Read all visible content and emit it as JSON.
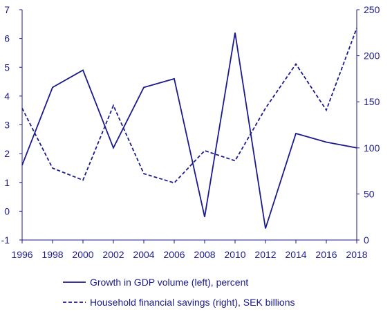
{
  "colors": {
    "series": "#1a1a8c",
    "axis": "#1a1a8c",
    "text": "#1a1a8c"
  },
  "chart_data": {
    "type": "line",
    "title": "",
    "xlabel": "",
    "x_ticks": [
      "1996",
      "1998",
      "2000",
      "2002",
      "2004",
      "2006",
      "2008",
      "2010",
      "2012",
      "2014",
      "2016",
      "2018"
    ],
    "y_left": {
      "lim": [
        -1,
        7
      ],
      "ticks": [
        "-1",
        "0",
        "1",
        "2",
        "3",
        "4",
        "5",
        "6",
        "7"
      ]
    },
    "y_right": {
      "lim": [
        0,
        250
      ],
      "ticks": [
        "0",
        "50",
        "100",
        "150",
        "200",
        "250"
      ]
    },
    "grid": false,
    "legend_position": "bottom",
    "series": [
      {
        "name": "Growth in GDP volume (left), percent",
        "axis": "left",
        "style": "solid",
        "x": [
          1996,
          1998,
          2000,
          2002,
          2004,
          2006,
          2008,
          2010,
          2012,
          2014,
          2016,
          2018
        ],
        "values": [
          1.6,
          4.3,
          4.9,
          2.2,
          4.3,
          4.6,
          -0.2,
          6.2,
          -0.6,
          2.7,
          2.4,
          2.2
        ]
      },
      {
        "name": "Household financial savings (right), SEK billions",
        "axis": "right",
        "style": "dashed",
        "x": [
          1996,
          1998,
          2000,
          2002,
          2004,
          2006,
          2008,
          2010,
          2012,
          2014,
          2016,
          2018
        ],
        "values": [
          143,
          78,
          65,
          146,
          72,
          62,
          97,
          86,
          143,
          191,
          141,
          230
        ]
      }
    ]
  }
}
